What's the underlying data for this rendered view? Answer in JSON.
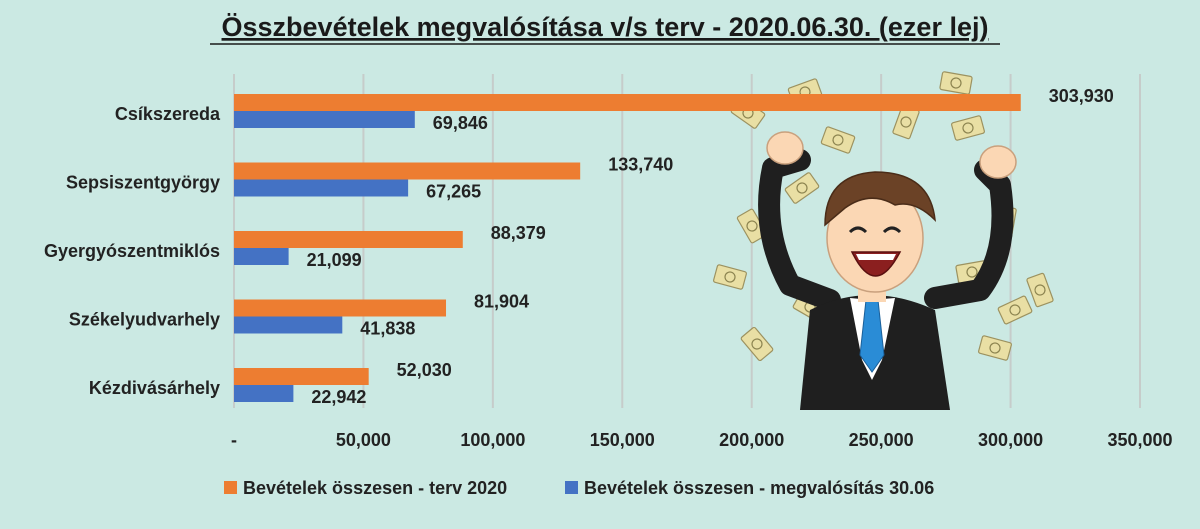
{
  "colors": {
    "background": "#cbe9e3",
    "series_plan": "#ed7d31",
    "series_actual": "#4472c4",
    "grid": "#c6ccca"
  },
  "chart_data": {
    "type": "bar",
    "orientation": "horizontal",
    "title": "Összbevételek megvalósítása v/s terv - 2020.06.30. (ezer lej)",
    "categories": [
      "Csíkszereda",
      "Sepsiszentgyörgy",
      "Gyergyószentmiklós",
      "Székelyudvarhely",
      "Kézdivásárhely"
    ],
    "series": [
      {
        "name": "Bevételek összesen - terv 2020",
        "color": "#ed7d31",
        "values": [
          303930,
          133740,
          88379,
          81904,
          52030
        ],
        "labels": [
          "303,930",
          "133,740",
          "88,379",
          "81,904",
          "52,030"
        ]
      },
      {
        "name": "Bevételek összesen - megvalósítás 30.06",
        "color": "#4472c4",
        "values": [
          69846,
          67265,
          21099,
          41838,
          22942
        ],
        "labels": [
          "69,846",
          "67,265",
          "21,099",
          "41,838",
          "22,942"
        ]
      }
    ],
    "xlim": [
      0,
      350000
    ],
    "ticks": [
      0,
      50000,
      100000,
      150000,
      200000,
      250000,
      300000,
      350000
    ],
    "tick_labels": [
      "-",
      "50,000",
      "100,000",
      "150,000",
      "200,000",
      "250,000",
      "300,000",
      "350,000"
    ],
    "grid": true,
    "legend_position": "bottom"
  },
  "illustration": {
    "name": "happy-businessman-with-money-rain"
  }
}
